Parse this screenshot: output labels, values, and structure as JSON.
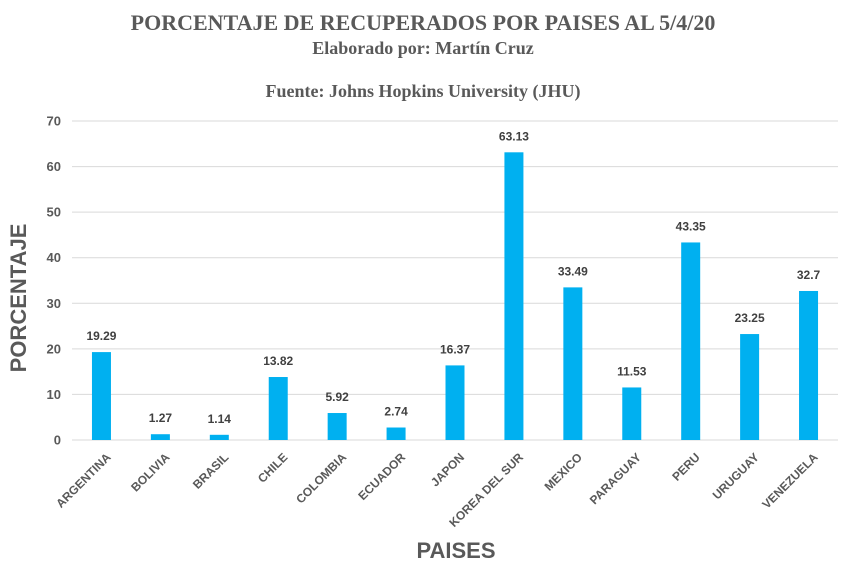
{
  "chart_data": {
    "type": "bar",
    "title": "PORCENTAJE DE RECUPERADOS POR PAISES AL 5/4/20",
    "subtitle": "Elaborado por: Martín Cruz",
    "source": "Fuente: Johns Hopkins University (JHU)",
    "xlabel": "PAISES",
    "ylabel": "PORCENTAJE",
    "ylim": [
      0,
      70
    ],
    "yticks": [
      0,
      10,
      20,
      30,
      40,
      50,
      60,
      70
    ],
    "grid": true,
    "legend": "none",
    "bar_color": "#00b0f0",
    "categories": [
      "ARGENTINA",
      "BOLIVIA",
      "BRASIL",
      "CHILE",
      "COLOMBIA",
      "ECUADOR",
      "JAPON",
      "KOREA DEL SUR",
      "MEXICO",
      "PARAGUAY",
      "PERU",
      "URUGUAY",
      "VENEZUELA"
    ],
    "values": [
      19.29,
      1.27,
      1.14,
      13.82,
      5.92,
      2.74,
      16.37,
      63.13,
      33.49,
      11.53,
      43.35,
      23.25,
      32.7
    ],
    "value_labels": [
      "19.29",
      "1.27",
      "1.14",
      "13.82",
      "5.92",
      "2.74",
      "16.37",
      "63.13",
      "33.49",
      "11.53",
      "43.35",
      "23.25",
      "32.7"
    ]
  }
}
